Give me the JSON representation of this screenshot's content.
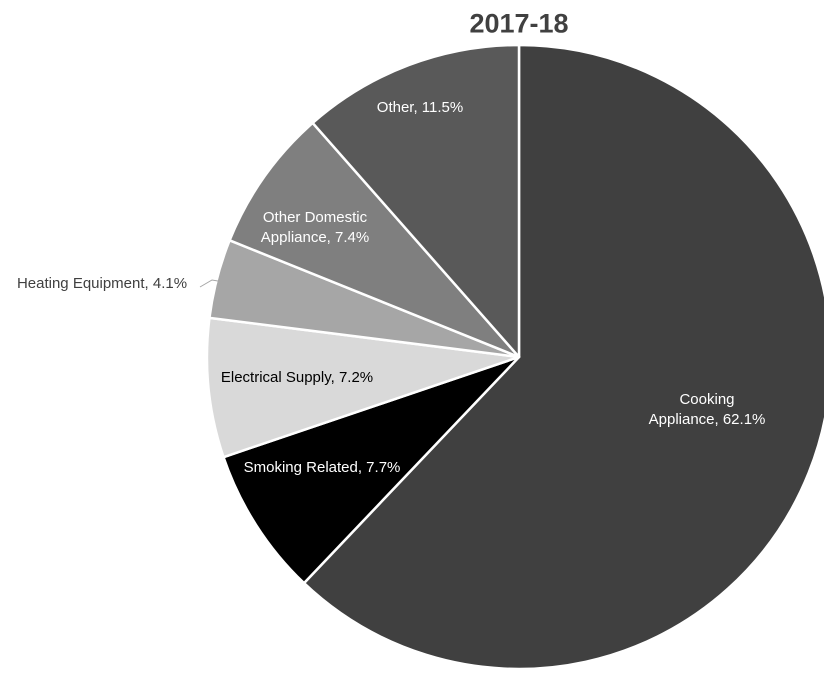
{
  "chart_data": {
    "type": "pie",
    "title": "2017-18",
    "labels": [
      "Cooking Appliance, 62.1%",
      "Smoking Related, 7.7%",
      "Electrical Supply, 7.2%",
      "Heating Equipment, 4.1%",
      "Other Domestic Appliance, 7.4%",
      "Other, 11.5%"
    ],
    "values": [
      62.1,
      7.7,
      7.2,
      4.1,
      7.4,
      11.5
    ],
    "colors": [
      "#404040",
      "#000000",
      "#d9d9d9",
      "#a6a6a6",
      "#7f7f7f",
      "#595959"
    ]
  }
}
